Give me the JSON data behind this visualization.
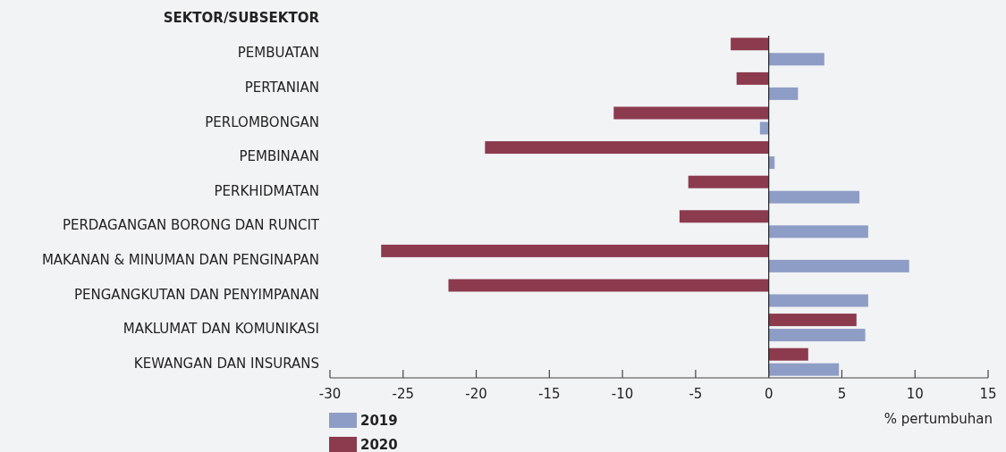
{
  "chart_data": {
    "type": "bar",
    "orientation": "horizontal",
    "ylabel": "SEKTOR/SUBSEKTOR",
    "xlabel": "% pertumbuhan",
    "categories": [
      "PEMBUATAN",
      "PERTANIAN",
      "PERLOMBONGAN",
      "PEMBINAAN",
      "PERKHIDMATAN",
      "PERDAGANGAN BORONG DAN RUNCIT",
      "MAKANAN & MINUMAN DAN PENGINAPAN",
      "PENGANGKUTAN DAN PENYIMPANAN",
      "MAKLUMAT DAN KOMUNIKASI",
      "KEWANGAN DAN INSURANS"
    ],
    "series": [
      {
        "name": "2019",
        "color": "#8e9dc6",
        "values": [
          3.8,
          2.0,
          -0.6,
          0.4,
          6.2,
          6.8,
          9.6,
          6.8,
          6.6,
          4.8
        ]
      },
      {
        "name": "2020",
        "color": "#8c3a4e",
        "values": [
          -2.6,
          -2.2,
          -10.6,
          -19.4,
          -5.5,
          -6.1,
          -26.5,
          -21.9,
          6.0,
          2.7
        ]
      }
    ],
    "xlim": [
      -30,
      15
    ],
    "xticks": [
      -30,
      -25,
      -20,
      -15,
      -10,
      -5,
      0,
      5,
      10,
      15
    ],
    "legend": "bottom left"
  }
}
